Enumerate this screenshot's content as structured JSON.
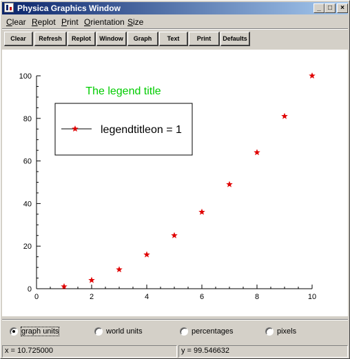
{
  "window": {
    "title": "Physica Graphics Window",
    "controls": {
      "minimize": "_",
      "maximize": "□",
      "close": "×"
    }
  },
  "menu": [
    {
      "label": "Clear",
      "accel": "C",
      "rest": "lear"
    },
    {
      "label": "Replot",
      "accel": "R",
      "rest": "eplot"
    },
    {
      "label": "Print",
      "accel": "P",
      "rest": "rint"
    },
    {
      "label": "Orientation",
      "accel": "O",
      "rest": "rientation"
    },
    {
      "label": "Size",
      "accel": "S",
      "rest": "ize"
    }
  ],
  "toolbar": [
    "Clear",
    "Refresh",
    "Replot",
    "Window",
    "Graph",
    "Text",
    "Print",
    "Defaults"
  ],
  "chart_data": {
    "type": "scatter",
    "title": "",
    "xlabel": "",
    "ylabel": "",
    "x": [
      1,
      2,
      3,
      4,
      5,
      6,
      7,
      8,
      9,
      10
    ],
    "y": [
      1,
      4,
      9,
      16,
      25,
      36,
      49,
      64,
      81,
      100
    ],
    "xlim": [
      0,
      10
    ],
    "ylim": [
      0,
      100
    ],
    "xticks": [
      0,
      2,
      4,
      6,
      8,
      10
    ],
    "yticks": [
      0,
      20,
      40,
      60,
      80,
      100
    ],
    "marker": "star",
    "marker_color": "#e00000",
    "grid": false,
    "legend": {
      "title": "The legend title",
      "title_color": "#00cc00",
      "entry": "legendtitleon = 1",
      "placement": "top-left"
    }
  },
  "units": {
    "options": [
      "graph units",
      "world units",
      "percentages",
      "pixels"
    ],
    "selected": "graph units"
  },
  "status": {
    "x": "x = 10.725000",
    "y": "y = 99.546632"
  }
}
